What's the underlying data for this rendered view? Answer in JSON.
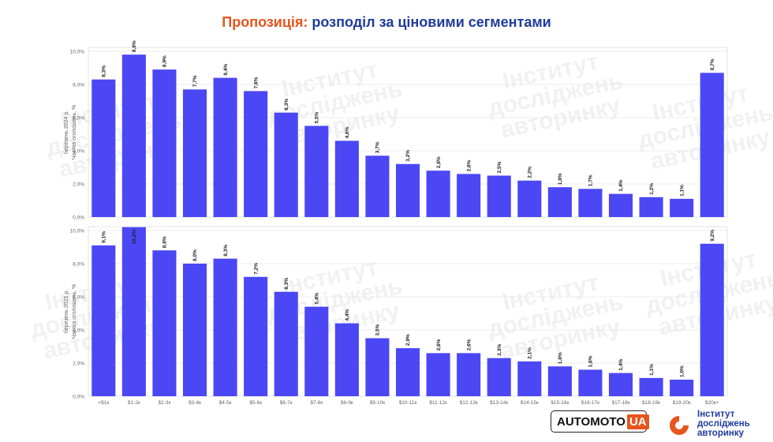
{
  "title": {
    "part1": "Пропозиція:",
    "part2": "розподіл за ціновими сегментами"
  },
  "colors": {
    "bar": "#4b47f5",
    "title_accent": "#e8541d",
    "title_main": "#1f3b9c"
  },
  "chart_data": [
    {
      "type": "bar",
      "ylabel": "Частка оголошень, %",
      "period_label": "березень 2024 р.",
      "ylim": [
        0,
        10
      ],
      "yticks": [
        "0,0%",
        "2,0%",
        "4,0%",
        "6,0%",
        "8,0%",
        "10,0%"
      ],
      "values": [
        8.3,
        9.8,
        8.9,
        7.7,
        8.4,
        7.6,
        6.3,
        5.5,
        4.6,
        3.7,
        3.2,
        2.8,
        2.6,
        2.5,
        2.2,
        1.8,
        1.7,
        1.4,
        1.2,
        1.1,
        8.7
      ],
      "value_labels": [
        "8,3%",
        "9,8%",
        "8,9%",
        "7,7%",
        "8,4%",
        "7,6%",
        "6,3%",
        "5,5%",
        "4,6%",
        "3,7%",
        "3,2%",
        "2,8%",
        "2,6%",
        "2,5%",
        "2,2%",
        "1,8%",
        "1,7%",
        "1,4%",
        "1,2%",
        "1,1%",
        "8,7%"
      ],
      "grid": true
    },
    {
      "type": "bar",
      "ylabel": "Частка оголошень, %",
      "period_label": "березень 2025 р.",
      "ylim": [
        0,
        10
      ],
      "yticks": [
        "0,0%",
        "2,0%",
        "4,0%",
        "6,0%",
        "8,0%",
        "10,0%"
      ],
      "categories": [
        "<$1к",
        "$1-2к",
        "$2-3к",
        "$3-4к",
        "$4-5к",
        "$5-6к",
        "$6-7к",
        "$7-8к",
        "$8-9к",
        "$9-10к",
        "$10-11к",
        "$11-12к",
        "$12-13к",
        "$13-14к",
        "$14-15к",
        "$15-16к",
        "$16-17к",
        "$17-18к",
        "$18-19к",
        "$19-20к",
        "$20к+"
      ],
      "values": [
        9.1,
        10.2,
        8.8,
        8.0,
        8.3,
        7.2,
        6.3,
        5.4,
        4.4,
        3.5,
        2.9,
        2.6,
        2.6,
        2.3,
        2.1,
        1.8,
        1.6,
        1.4,
        1.1,
        1.0,
        9.2
      ],
      "value_labels": [
        "9,1%",
        "10,2%",
        "8,8%",
        "8,0%",
        "8,3%",
        "7,2%",
        "6,3%",
        "5,4%",
        "4,4%",
        "3,5%",
        "2,9%",
        "2,6%",
        "2,6%",
        "2,3%",
        "2,1%",
        "1,8%",
        "1,6%",
        "1,4%",
        "1,1%",
        "1,0%",
        "9,2%"
      ],
      "grid": true
    }
  ],
  "watermark": {
    "lines": [
      "Інститут",
      "досліджень",
      "авторинку"
    ]
  },
  "logos": {
    "automoto": {
      "main": "AUTOMOTO",
      "accent": "UA"
    },
    "institute": {
      "lines": [
        "Інститут",
        "досліджень",
        "авторинку"
      ]
    }
  }
}
